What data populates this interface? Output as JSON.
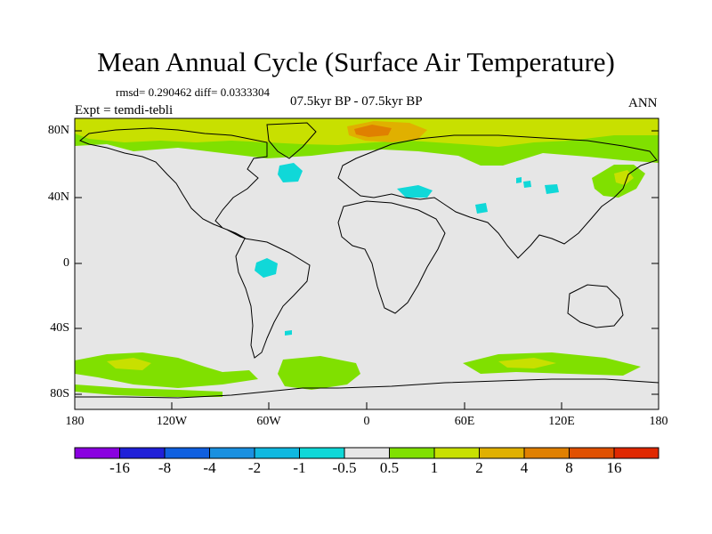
{
  "title": "Mean Annual Cycle (Surface Air Temperature)",
  "stats_line": "rmsd= 0.290462 diff= 0.0333304",
  "experiment": "Expt = temdi-tebli",
  "period": "07.5kyr BP - 07.5kyr BP",
  "season": "ANN",
  "y_axis_labels": [
    "80N",
    "40N",
    "0",
    "40S",
    "80S"
  ],
  "x_axis_labels": [
    "180",
    "120W",
    "60W",
    "0",
    "60E",
    "120E",
    "180"
  ],
  "colorbar": {
    "labels": [
      "-16",
      "-8",
      "-4",
      "-2",
      "-1",
      "-0.5",
      "0.5",
      "1",
      "2",
      "4",
      "8",
      "16"
    ],
    "colors": [
      "#8a00e0",
      "#2020d8",
      "#1060e0",
      "#1a90e0",
      "#10b8e0",
      "#10d8d8",
      "#e6e6e6",
      "#80e000",
      "#c8e000",
      "#e0b000",
      "#e08000",
      "#e05000",
      "#e02800"
    ]
  },
  "map_colors": {
    "background": "#e6e6e6",
    "warm_1": "#80e000",
    "warm_2": "#c8e000",
    "warm_4": "#e0b000",
    "warm_8": "#e08000",
    "cool_1": "#10d8d8"
  }
}
